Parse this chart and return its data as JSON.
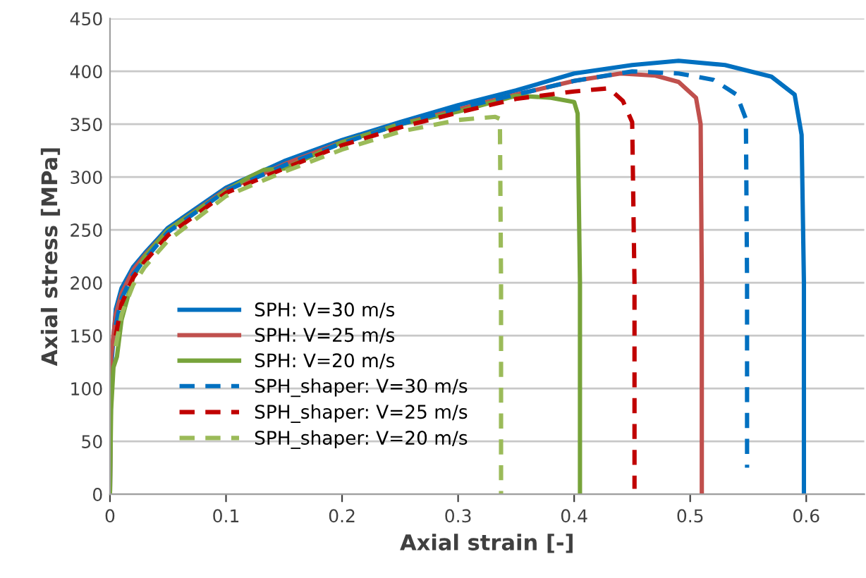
{
  "chart_data": {
    "type": "line",
    "xlabel": "Axial strain [-]",
    "ylabel": "Axial stress [MPa]",
    "xlim": [
      0,
      0.65
    ],
    "xticks": [
      0,
      0.1,
      0.2,
      0.3,
      0.4,
      0.5,
      0.6
    ],
    "ylim": [
      0,
      450
    ],
    "yticks": [
      0,
      50,
      100,
      150,
      200,
      250,
      300,
      350,
      400,
      450
    ],
    "grid": "y",
    "legend": "lower left",
    "series": [
      {
        "name": "SPH: V=30 m/s",
        "color": "#0070c0",
        "line_style": "solid",
        "x": [
          0,
          0.001,
          0.005,
          0.01,
          0.02,
          0.03,
          0.05,
          0.1,
          0.15,
          0.2,
          0.25,
          0.3,
          0.35,
          0.4,
          0.45,
          0.49,
          0.53,
          0.57,
          0.59,
          0.596,
          0.598,
          0.598
        ],
        "values": [
          0,
          120,
          175,
          195,
          215,
          228,
          252,
          290,
          315,
          335,
          352,
          368,
          382,
          398,
          406,
          410,
          406,
          395,
          378,
          340,
          200,
          0
        ]
      },
      {
        "name": "SPH: V=25 m/s",
        "color": "#c0504d",
        "line_style": "solid",
        "x": [
          0,
          0.001,
          0.005,
          0.01,
          0.02,
          0.03,
          0.05,
          0.1,
          0.15,
          0.2,
          0.25,
          0.3,
          0.35,
          0.4,
          0.44,
          0.47,
          0.49,
          0.505,
          0.509,
          0.51,
          0.51
        ],
        "values": [
          0,
          130,
          170,
          190,
          212,
          226,
          250,
          288,
          312,
          333,
          350,
          364,
          378,
          391,
          398,
          396,
          390,
          375,
          350,
          200,
          0
        ]
      },
      {
        "name": "SPH: V=20 m/s",
        "color": "#77a33a",
        "line_style": "solid",
        "x": [
          0,
          0.001,
          0.003,
          0.006,
          0.01,
          0.02,
          0.03,
          0.05,
          0.1,
          0.12,
          0.133,
          0.15,
          0.2,
          0.25,
          0.3,
          0.35,
          0.38,
          0.4,
          0.403,
          0.405,
          0.405
        ],
        "values": [
          0,
          80,
          120,
          130,
          165,
          205,
          225,
          250,
          287,
          300,
          307,
          308,
          333,
          350,
          362,
          377,
          375,
          371,
          360,
          200,
          0
        ]
      },
      {
        "name": "SPH_shaper: V=30 m/s",
        "color": "#0070c0",
        "line_style": "dashed",
        "x": [
          0.005,
          0.01,
          0.02,
          0.03,
          0.05,
          0.1,
          0.15,
          0.2,
          0.25,
          0.3,
          0.35,
          0.4,
          0.45,
          0.49,
          0.52,
          0.54,
          0.548,
          0.549,
          0.549
        ],
        "values": [
          160,
          185,
          208,
          222,
          248,
          287,
          311,
          332,
          350,
          365,
          378,
          391,
          400,
          398,
          392,
          378,
          355,
          200,
          25
        ]
      },
      {
        "name": "SPH_shaper: V=25 m/s",
        "color": "#c00000",
        "line_style": "dashed",
        "x": [
          0.005,
          0.01,
          0.02,
          0.03,
          0.05,
          0.1,
          0.15,
          0.2,
          0.25,
          0.3,
          0.35,
          0.4,
          0.43,
          0.442,
          0.45,
          0.452,
          0.452
        ],
        "values": [
          150,
          180,
          205,
          220,
          245,
          285,
          308,
          330,
          347,
          361,
          374,
          381,
          384,
          372,
          352,
          200,
          5
        ]
      },
      {
        "name": "SPH_shaper: V=20 m/s",
        "color": "#9bbb59",
        "line_style": "dashed",
        "x": [
          0.005,
          0.01,
          0.02,
          0.03,
          0.05,
          0.1,
          0.15,
          0.2,
          0.25,
          0.3,
          0.332,
          0.336,
          0.337,
          0.337
        ],
        "values": [
          140,
          170,
          198,
          215,
          240,
          282,
          305,
          326,
          343,
          354,
          357,
          355,
          200,
          0
        ]
      }
    ]
  }
}
